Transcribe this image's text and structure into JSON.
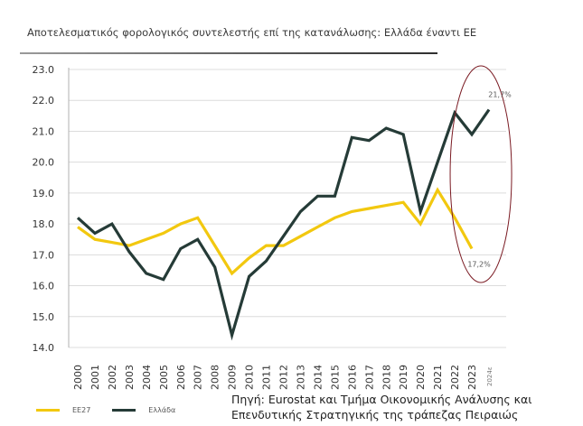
{
  "chart_data": {
    "type": "line",
    "title": "Αποτελεσματικός φορολογικός συντελεστής επί της κατανάλωσης: Ελλάδα έναντι ΕΕ",
    "xlabel": "",
    "ylabel": "",
    "ylim": [
      14.0,
      23.0
    ],
    "y_ticks": [
      "14.0",
      "15.0",
      "16.0",
      "17.0",
      "18.0",
      "19.0",
      "20.0",
      "21.0",
      "22.0",
      "23.0"
    ],
    "grid": true,
    "categories": [
      "2000",
      "2001",
      "2002",
      "2003",
      "2004",
      "2005",
      "2006",
      "2007",
      "2008",
      "2009",
      "2010",
      "2011",
      "2012",
      "2013",
      "2014",
      "2015",
      "2016",
      "2017",
      "2018",
      "2019",
      "2020",
      "2021",
      "2022",
      "2023",
      "2024ε"
    ],
    "series": [
      {
        "name": "ΕΕ27",
        "color": "#f2c80f",
        "values": [
          17.9,
          17.5,
          17.4,
          17.3,
          17.5,
          17.7,
          18.0,
          18.2,
          17.3,
          16.4,
          16.9,
          17.3,
          17.3,
          17.6,
          17.9,
          18.2,
          18.4,
          18.5,
          18.6,
          18.7,
          18.0,
          19.1,
          18.2,
          17.2,
          null
        ]
      },
      {
        "name": "Ελλάδα",
        "color": "#253b37",
        "values": [
          18.2,
          17.7,
          18.0,
          17.1,
          16.4,
          16.2,
          17.2,
          17.5,
          16.6,
          14.4,
          16.3,
          16.8,
          17.6,
          18.4,
          18.9,
          18.9,
          20.8,
          20.7,
          21.1,
          20.9,
          18.4,
          20.0,
          21.6,
          20.9,
          21.7
        ]
      }
    ],
    "annotations": [
      {
        "text": "21,7%",
        "series": "Ελλάδα",
        "category": "2024ε"
      },
      {
        "text": "17,2%",
        "series": "ΕΕ27",
        "category": "2023"
      }
    ],
    "highlight": {
      "shape": "ellipse",
      "color": "#7a1a22",
      "categories": [
        "2022",
        "2024ε"
      ]
    },
    "legend": "bottom-left"
  },
  "source": {
    "line1": "Πηγή: Eurostat και Τμήμα Οικονομικής Ανάλυσης και",
    "line2": "Επενδυτικής Στρατηγικής της τράπεζας Πειραιώς"
  }
}
